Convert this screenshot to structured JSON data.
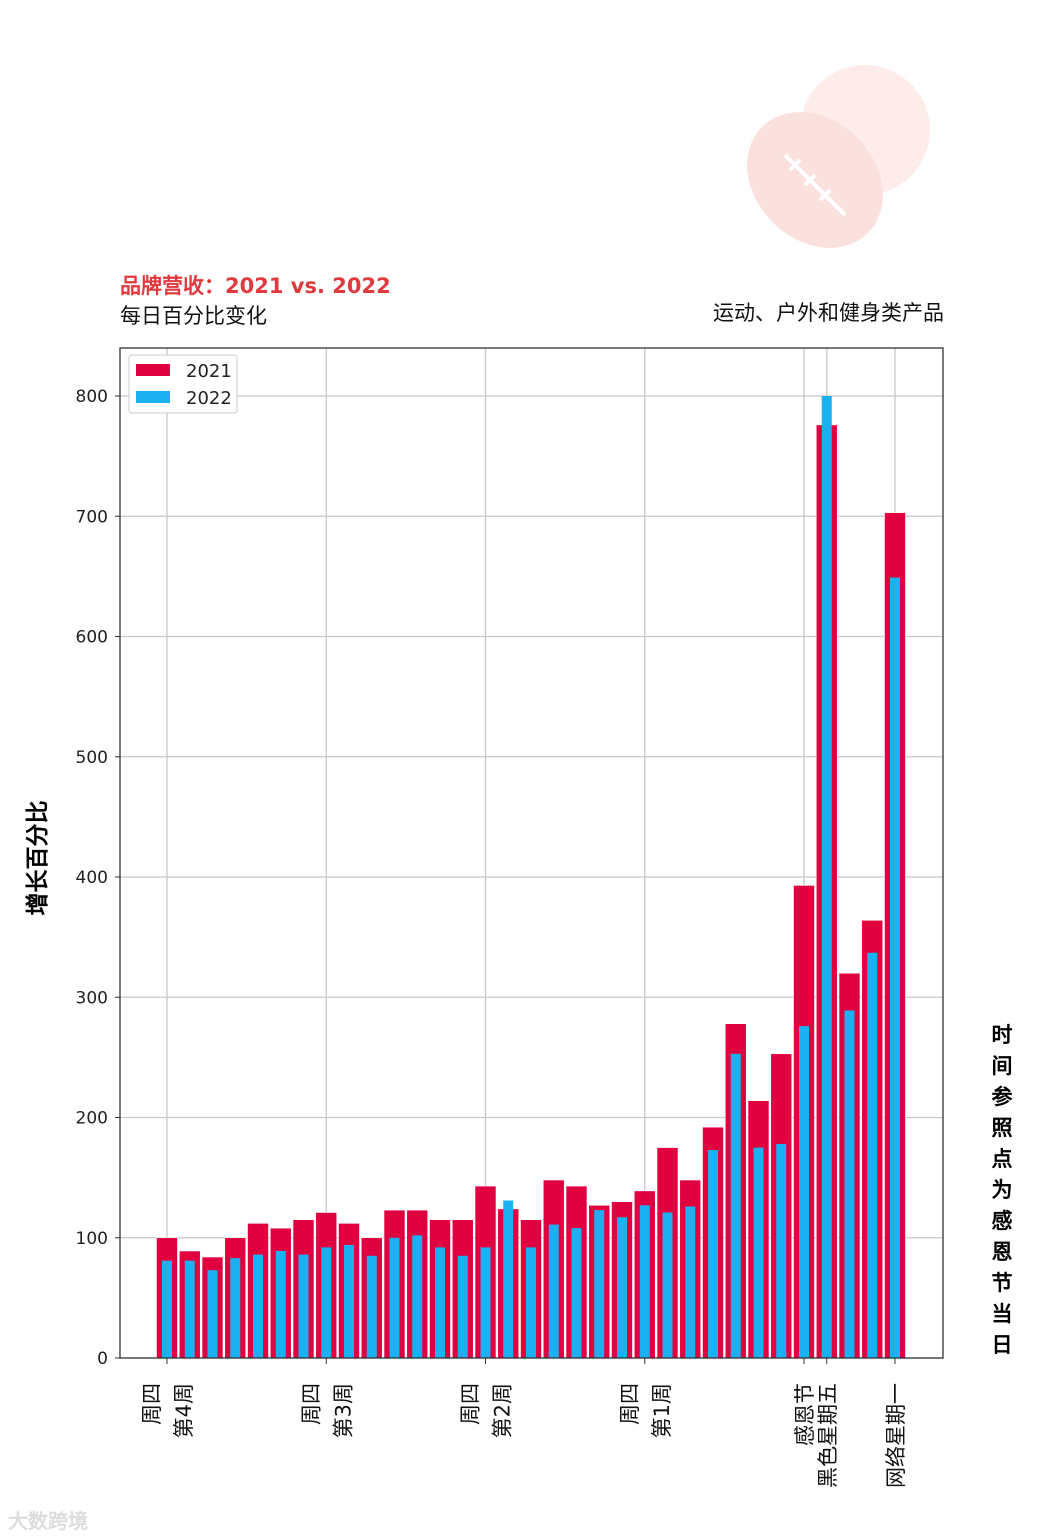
{
  "chart_data": {
    "type": "bar",
    "title": "品牌营收：2021 vs. 2022",
    "subtitle": "每日百分比变化",
    "category_label": "运动、户外和健身类产品",
    "ylabel": "增长百分比",
    "right_label": "时间参照点为感恩节当日",
    "ylim": [
      0,
      800
    ],
    "yticks": [
      0,
      100,
      200,
      300,
      400,
      500,
      600,
      700,
      800
    ],
    "grid": true,
    "legend_position": "top-left",
    "xticks": [
      {
        "index": 0,
        "lines": [
          "周四",
          "第4周"
        ]
      },
      {
        "index": 7,
        "lines": [
          "周四",
          "第3周"
        ]
      },
      {
        "index": 14,
        "lines": [
          "周四",
          "第2周"
        ]
      },
      {
        "index": 21,
        "lines": [
          "周四",
          "第1周"
        ]
      },
      {
        "index": 28,
        "lines": [
          "感恩节"
        ]
      },
      {
        "index": 29,
        "lines": [
          "黑色星期五"
        ]
      },
      {
        "index": 32,
        "lines": [
          "网络星期一"
        ]
      }
    ],
    "series": [
      {
        "name": "2021",
        "color": "#e0003f",
        "values": [
          100,
          89,
          84,
          100,
          112,
          108,
          115,
          121,
          112,
          100,
          123,
          123,
          115,
          115,
          143,
          124,
          115,
          148,
          143,
          127,
          130,
          139,
          175,
          148,
          192,
          278,
          214,
          253,
          393,
          776,
          320,
          364,
          703
        ]
      },
      {
        "name": "2022",
        "color": "#1ab0f2",
        "values": [
          81,
          81,
          73,
          83,
          86,
          89,
          86,
          92,
          94,
          85,
          100,
          102,
          92,
          85,
          92,
          131,
          92,
          111,
          108,
          123,
          117,
          127,
          121,
          126,
          173,
          253,
          175,
          178,
          276,
          800,
          289,
          337,
          649
        ]
      }
    ]
  },
  "watermark": "大数跨境"
}
